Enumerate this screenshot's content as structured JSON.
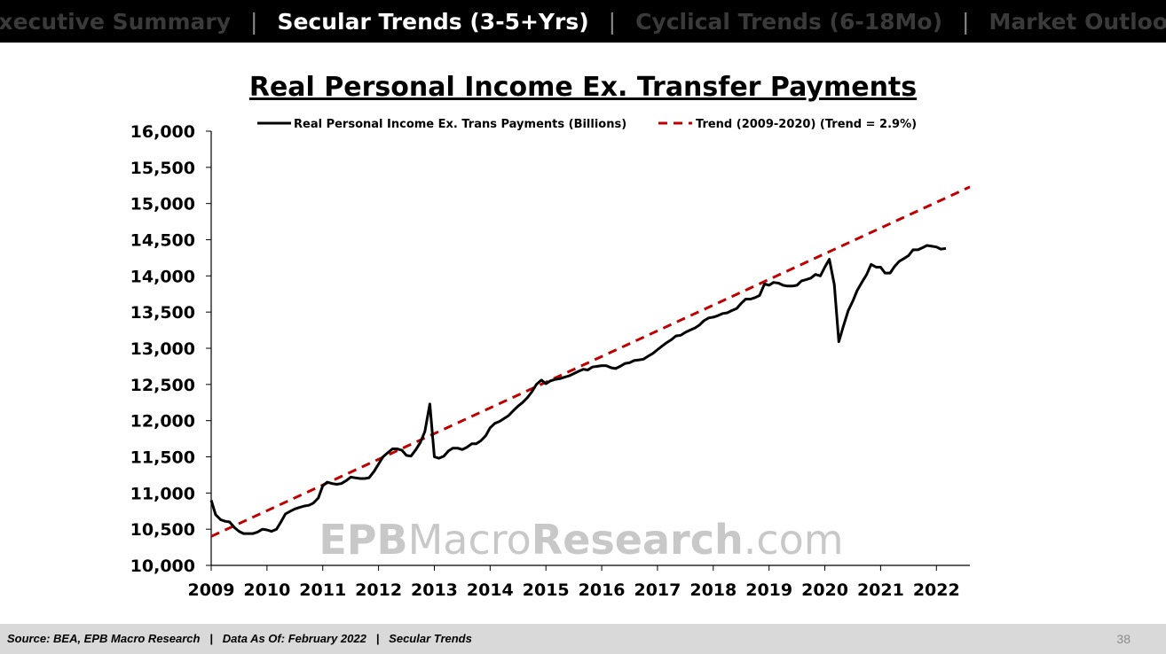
{
  "nav": {
    "items": [
      {
        "label": "Executive Summary",
        "active": false
      },
      {
        "label": "Secular Trends (3-5+Yrs)",
        "active": true
      },
      {
        "label": "Cyclical Trends (6-18Mo)",
        "active": false
      },
      {
        "label": "Market Outlook",
        "active": false
      }
    ],
    "separator": "|"
  },
  "watermark": {
    "part1": "EPB",
    "part2": "Macro",
    "part3": "Research",
    "part4": ".com"
  },
  "footer": {
    "text": "Source: BEA, EPB Macro Research   |   Data As Of: February 2022   |   Secular Trends",
    "page_number": "38"
  },
  "colors": {
    "actual": "#000000",
    "trend": "#c00000",
    "watermark": "#c8c8c8"
  },
  "chart_data": {
    "type": "line",
    "title": "Real Personal Income Ex. Transfer Payments",
    "ylim": [
      10000,
      16000
    ],
    "xlim": [
      2009.0,
      2022.6
    ],
    "y_ticks": [
      "10,000",
      "10,500",
      "11,000",
      "11,500",
      "12,000",
      "12,500",
      "13,000",
      "13,500",
      "14,000",
      "14,500",
      "15,000",
      "15,500",
      "16,000"
    ],
    "x_ticks": [
      "2009",
      "2010",
      "2011",
      "2012",
      "2013",
      "2014",
      "2015",
      "2016",
      "2017",
      "2018",
      "2019",
      "2020",
      "2021",
      "2022"
    ],
    "legend_position": "top",
    "grid": false,
    "series": [
      {
        "name": "Real Personal Income Ex. Trans Payments (Billions)",
        "style": "solid",
        "points": [
          [
            2009.0,
            10900
          ],
          [
            2009.08,
            10700
          ],
          [
            2009.17,
            10630
          ],
          [
            2009.25,
            10610
          ],
          [
            2009.33,
            10600
          ],
          [
            2009.42,
            10520
          ],
          [
            2009.5,
            10470
          ],
          [
            2009.58,
            10440
          ],
          [
            2009.67,
            10440
          ],
          [
            2009.75,
            10440
          ],
          [
            2009.83,
            10460
          ],
          [
            2009.92,
            10500
          ],
          [
            2010.0,
            10490
          ],
          [
            2010.08,
            10470
          ],
          [
            2010.17,
            10500
          ],
          [
            2010.25,
            10600
          ],
          [
            2010.33,
            10710
          ],
          [
            2010.42,
            10750
          ],
          [
            2010.5,
            10780
          ],
          [
            2010.58,
            10800
          ],
          [
            2010.67,
            10820
          ],
          [
            2010.75,
            10830
          ],
          [
            2010.83,
            10860
          ],
          [
            2010.92,
            10930
          ],
          [
            2011.0,
            11100
          ],
          [
            2011.08,
            11150
          ],
          [
            2011.17,
            11130
          ],
          [
            2011.25,
            11120
          ],
          [
            2011.33,
            11130
          ],
          [
            2011.42,
            11170
          ],
          [
            2011.5,
            11220
          ],
          [
            2011.58,
            11210
          ],
          [
            2011.67,
            11200
          ],
          [
            2011.75,
            11200
          ],
          [
            2011.83,
            11210
          ],
          [
            2011.92,
            11300
          ],
          [
            2012.0,
            11400
          ],
          [
            2012.08,
            11500
          ],
          [
            2012.17,
            11560
          ],
          [
            2012.25,
            11610
          ],
          [
            2012.33,
            11610
          ],
          [
            2012.42,
            11590
          ],
          [
            2012.5,
            11520
          ],
          [
            2012.58,
            11510
          ],
          [
            2012.67,
            11600
          ],
          [
            2012.75,
            11700
          ],
          [
            2012.83,
            11850
          ],
          [
            2012.92,
            12230
          ],
          [
            2013.0,
            11500
          ],
          [
            2013.08,
            11480
          ],
          [
            2013.17,
            11510
          ],
          [
            2013.25,
            11580
          ],
          [
            2013.33,
            11620
          ],
          [
            2013.42,
            11620
          ],
          [
            2013.5,
            11600
          ],
          [
            2013.58,
            11630
          ],
          [
            2013.67,
            11680
          ],
          [
            2013.75,
            11680
          ],
          [
            2013.83,
            11720
          ],
          [
            2013.92,
            11790
          ],
          [
            2014.0,
            11900
          ],
          [
            2014.08,
            11960
          ],
          [
            2014.17,
            11990
          ],
          [
            2014.25,
            12030
          ],
          [
            2014.33,
            12070
          ],
          [
            2014.42,
            12140
          ],
          [
            2014.5,
            12200
          ],
          [
            2014.58,
            12250
          ],
          [
            2014.67,
            12320
          ],
          [
            2014.75,
            12400
          ],
          [
            2014.83,
            12500
          ],
          [
            2014.92,
            12560
          ],
          [
            2015.0,
            12510
          ],
          [
            2015.08,
            12550
          ],
          [
            2015.17,
            12570
          ],
          [
            2015.25,
            12580
          ],
          [
            2015.33,
            12600
          ],
          [
            2015.42,
            12620
          ],
          [
            2015.5,
            12650
          ],
          [
            2015.58,
            12680
          ],
          [
            2015.67,
            12710
          ],
          [
            2015.75,
            12700
          ],
          [
            2015.83,
            12740
          ],
          [
            2015.92,
            12750
          ],
          [
            2016.0,
            12760
          ],
          [
            2016.08,
            12760
          ],
          [
            2016.17,
            12730
          ],
          [
            2016.25,
            12720
          ],
          [
            2016.33,
            12750
          ],
          [
            2016.42,
            12790
          ],
          [
            2016.5,
            12800
          ],
          [
            2016.58,
            12830
          ],
          [
            2016.67,
            12840
          ],
          [
            2016.75,
            12850
          ],
          [
            2016.83,
            12890
          ],
          [
            2016.92,
            12930
          ],
          [
            2017.0,
            12980
          ],
          [
            2017.08,
            13030
          ],
          [
            2017.17,
            13080
          ],
          [
            2017.25,
            13120
          ],
          [
            2017.33,
            13170
          ],
          [
            2017.42,
            13180
          ],
          [
            2017.5,
            13220
          ],
          [
            2017.58,
            13250
          ],
          [
            2017.67,
            13280
          ],
          [
            2017.75,
            13320
          ],
          [
            2017.83,
            13380
          ],
          [
            2017.92,
            13420
          ],
          [
            2018.0,
            13430
          ],
          [
            2018.08,
            13450
          ],
          [
            2018.17,
            13480
          ],
          [
            2018.25,
            13490
          ],
          [
            2018.33,
            13520
          ],
          [
            2018.42,
            13550
          ],
          [
            2018.5,
            13620
          ],
          [
            2018.58,
            13680
          ],
          [
            2018.67,
            13680
          ],
          [
            2018.75,
            13700
          ],
          [
            2018.83,
            13730
          ],
          [
            2018.92,
            13890
          ],
          [
            2019.0,
            13870
          ],
          [
            2019.08,
            13910
          ],
          [
            2019.17,
            13900
          ],
          [
            2019.25,
            13870
          ],
          [
            2019.33,
            13860
          ],
          [
            2019.42,
            13860
          ],
          [
            2019.5,
            13870
          ],
          [
            2019.58,
            13930
          ],
          [
            2019.67,
            13950
          ],
          [
            2019.75,
            13970
          ],
          [
            2019.83,
            14020
          ],
          [
            2019.92,
            14000
          ],
          [
            2020.0,
            14120
          ],
          [
            2020.08,
            14230
          ],
          [
            2020.17,
            13880
          ],
          [
            2020.25,
            13090
          ],
          [
            2020.33,
            13300
          ],
          [
            2020.42,
            13520
          ],
          [
            2020.5,
            13650
          ],
          [
            2020.58,
            13800
          ],
          [
            2020.67,
            13920
          ],
          [
            2020.75,
            14020
          ],
          [
            2020.83,
            14160
          ],
          [
            2020.92,
            14120
          ],
          [
            2021.0,
            14120
          ],
          [
            2021.08,
            14040
          ],
          [
            2021.17,
            14040
          ],
          [
            2021.25,
            14130
          ],
          [
            2021.33,
            14200
          ],
          [
            2021.42,
            14240
          ],
          [
            2021.5,
            14280
          ],
          [
            2021.58,
            14360
          ],
          [
            2021.67,
            14360
          ],
          [
            2021.75,
            14390
          ],
          [
            2021.83,
            14420
          ],
          [
            2021.92,
            14410
          ],
          [
            2022.0,
            14400
          ],
          [
            2022.08,
            14370
          ],
          [
            2022.17,
            14380
          ]
        ]
      },
      {
        "name": "Trend (2009-2020) (Trend = 2.9%)",
        "style": "dashed",
        "points": [
          [
            2009.0,
            10400
          ],
          [
            2022.6,
            15230
          ]
        ]
      }
    ]
  }
}
